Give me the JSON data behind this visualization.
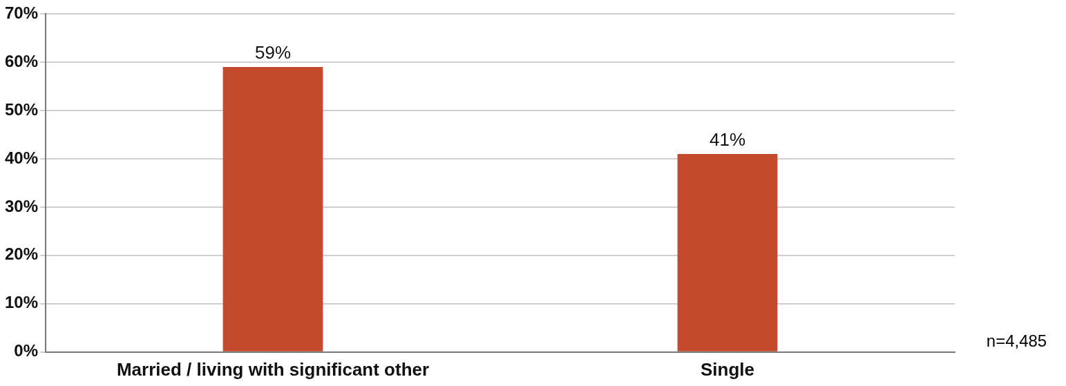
{
  "chart_data": {
    "type": "bar",
    "categories": [
      "Married / living with significant other",
      "Single"
    ],
    "values": [
      59,
      41
    ],
    "color": "#c44a2e",
    "ylim": [
      0,
      70
    ],
    "yticks": [
      {
        "value": 0,
        "label": "0%"
      },
      {
        "value": 10,
        "label": "10%"
      },
      {
        "value": 20,
        "label": "20%"
      },
      {
        "value": 30,
        "label": "30%"
      },
      {
        "value": 40,
        "label": "40%"
      },
      {
        "value": 50,
        "label": "50%"
      },
      {
        "value": 60,
        "label": "60%"
      },
      {
        "value": 70,
        "label": "70%"
      }
    ],
    "value_labels": [
      "59%",
      "41%"
    ],
    "grid": "y",
    "legend": false,
    "annotations": [
      "n=4,485"
    ]
  }
}
